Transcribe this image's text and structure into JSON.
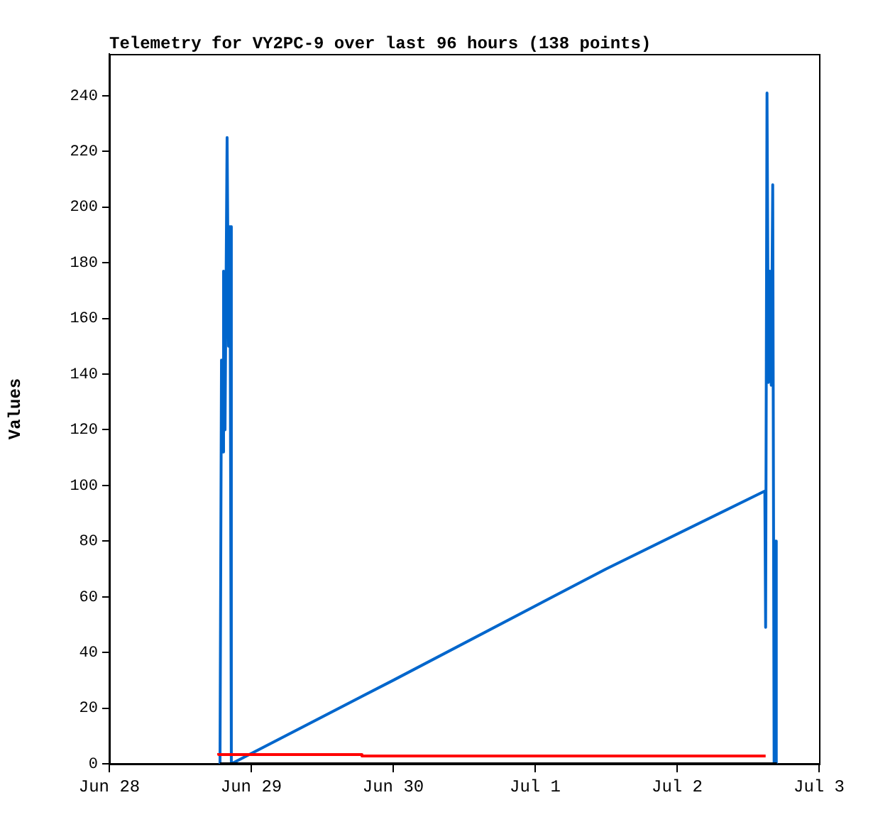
{
  "chart_data": {
    "type": "line",
    "title": "Telemetry for VY2PC-9 over last 96 hours (138 points)",
    "ylabel": "Values",
    "xlim": [
      "--06-28",
      "--07-03"
    ],
    "xticks": [
      {
        "value": "--06-28",
        "label": "Jun 28"
      },
      {
        "value": "--06-29",
        "label": "Jun 29"
      },
      {
        "value": "--06-30",
        "label": "Jun 30"
      },
      {
        "value": "--07-01",
        "label": "Jul 1"
      },
      {
        "value": "--07-02",
        "label": "Jul 2"
      },
      {
        "value": "--07-03",
        "label": "Jul 3"
      }
    ],
    "ylim": [
      0,
      255
    ],
    "yticks": [
      0,
      20,
      40,
      60,
      80,
      100,
      120,
      140,
      160,
      180,
      200,
      220,
      240
    ],
    "grid": false,
    "legend": false,
    "marker": "none",
    "line_style": "solid",
    "series": [
      {
        "color": "#000000",
        "x": [
          "--06-28T18:43",
          "--07-02T16:53"
        ],
        "values": [
          0,
          0
        ]
      },
      {
        "type": "step",
        "color": "#ff0000",
        "x": [
          "--06-28T18:29",
          "--06-29T18:43",
          "--07-01T14:38",
          "--07-02T14:58"
        ],
        "values": [
          3.8,
          3.3,
          2.8,
          2.8
        ]
      },
      {
        "color": "#0066cc",
        "x": [
          "--06-28T18:43",
          "--06-28T18:58",
          "--06-28T19:12",
          "--06-28T19:19",
          "--06-28T19:34",
          "--06-28T19:55",
          "--06-28T20:10",
          "--06-28T20:24",
          "--06-28T20:38",
          "--06-30T00:00",
          "--07-01T12:00",
          "--07-02T14:50",
          "--07-02T14:58",
          "--07-02T15:12",
          "--07-02T15:26",
          "--07-02T15:41",
          "--07-02T15:55",
          "--07-02T16:10",
          "--07-02T16:24",
          "--07-02T16:38",
          "--07-02T16:46"
        ],
        "values": [
          0,
          145,
          112,
          177,
          120,
          225,
          150,
          193,
          0,
          30,
          70,
          98,
          49,
          241,
          137,
          177,
          136,
          208,
          0,
          80,
          0
        ]
      }
    ]
  }
}
